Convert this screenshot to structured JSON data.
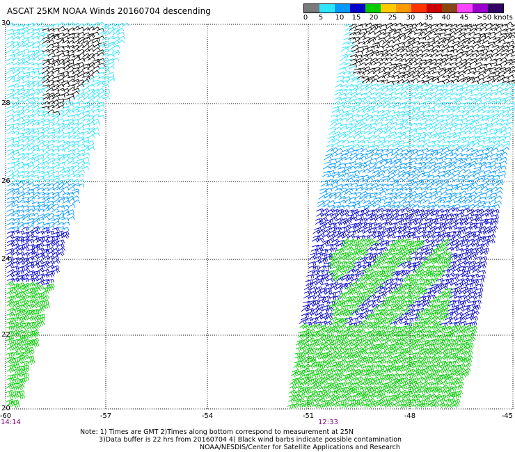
{
  "title": "ASCAT 25KM NOAA Winds 20160704 descending",
  "colorbar": {
    "colors": [
      "#7a7a7a",
      "#2fe6ff",
      "#0099ff",
      "#0000cc",
      "#00cc00",
      "#ffcc00",
      "#ff9900",
      "#ff3300",
      "#cc0000",
      "#8b4513",
      "#ff44ff",
      "#9900cc",
      "#330066"
    ],
    "labels": [
      "0",
      "5",
      "10",
      "15",
      "20",
      "25",
      "30",
      "35",
      "40",
      "45",
      ">50 knots"
    ]
  },
  "axes": {
    "lat_ticks": [
      "30",
      "28",
      "26",
      "24",
      "22",
      "20"
    ],
    "lon_ticks": [
      "-60",
      "-57",
      "-54",
      "-51",
      "-48",
      "-45"
    ]
  },
  "pass_times": [
    "14:14",
    "12:33"
  ],
  "notes": {
    "line1": "Note: 1) Times are GMT 2)Times along bottom correspond to measurement at 25N",
    "line2": "3)Data buffer is 22 hrs from 20160704 4) Black wind barbs indicate possible contamination",
    "line3": "NOAA/NESDIS/Center for Satellite Applications and Research"
  },
  "legend_colors": {
    "contaminated": "#000000",
    "speed_5_10": "#2fe6ff",
    "speed_10_15": "#0099ff",
    "speed_15_20": "#0000cc",
    "speed_20_25": "#00cc00"
  }
}
